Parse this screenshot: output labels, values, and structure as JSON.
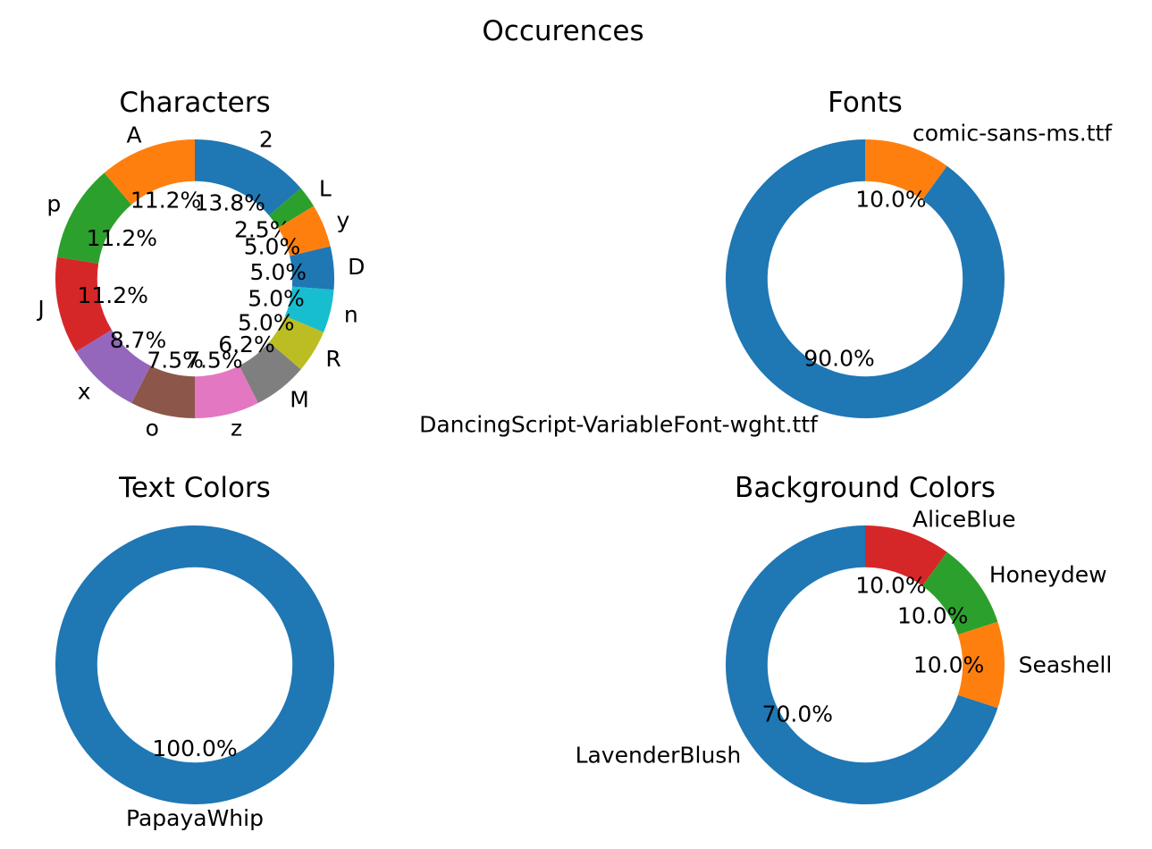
{
  "chart_data": {
    "title": "Occurences",
    "charts": [
      {
        "type": "pie",
        "title": "Characters",
        "categories": [
          "2",
          "L",
          "y",
          "D",
          "n",
          "R",
          "M",
          "z",
          "o",
          "x",
          "J",
          "p",
          "A"
        ],
        "values": [
          13.75,
          2.5,
          5.0,
          5.0,
          5.0,
          5.0,
          6.25,
          7.5,
          7.5,
          8.75,
          11.25,
          11.25,
          11.25
        ],
        "percent_labels": [
          "13.8%",
          "2.5%",
          "5.0%",
          "5.0%",
          "5.0%",
          "5.0%",
          "6.2%",
          "7.5%",
          "7.5%",
          "8.7%",
          "11.2%",
          "11.2%",
          "11.2%"
        ],
        "colors": [
          "#1f77b4",
          "#2ca02c",
          "#ff7f0e",
          "#1f77b4",
          "#17becf",
          "#bcbd22",
          "#7f7f7f",
          "#e377c2",
          "#8c564b",
          "#9467bd",
          "#d62728",
          "#2ca02c",
          "#ff7f0e"
        ]
      },
      {
        "type": "pie",
        "title": "Fonts",
        "categories": [
          "comic-sans-ms.ttf",
          "DancingScript-VariableFont-wght.ttf"
        ],
        "values": [
          10.0,
          90.0
        ],
        "percent_labels": [
          "10.0%",
          "90.0%"
        ],
        "colors": [
          "#ff7f0e",
          "#1f77b4"
        ]
      },
      {
        "type": "pie",
        "title": "Text Colors",
        "categories": [
          "PapayaWhip"
        ],
        "values": [
          100.0
        ],
        "percent_labels": [
          "100.0%"
        ],
        "colors": [
          "#1f77b4"
        ]
      },
      {
        "type": "pie",
        "title": "Background Colors",
        "categories": [
          "AliceBlue",
          "Honeydew",
          "Seashell",
          "LavenderBlush"
        ],
        "values": [
          10.0,
          10.0,
          10.0,
          70.0
        ],
        "percent_labels": [
          "10.0%",
          "10.0%",
          "10.0%",
          "70.0%"
        ],
        "colors": [
          "#d62728",
          "#2ca02c",
          "#ff7f0e",
          "#1f77b4"
        ]
      }
    ]
  }
}
